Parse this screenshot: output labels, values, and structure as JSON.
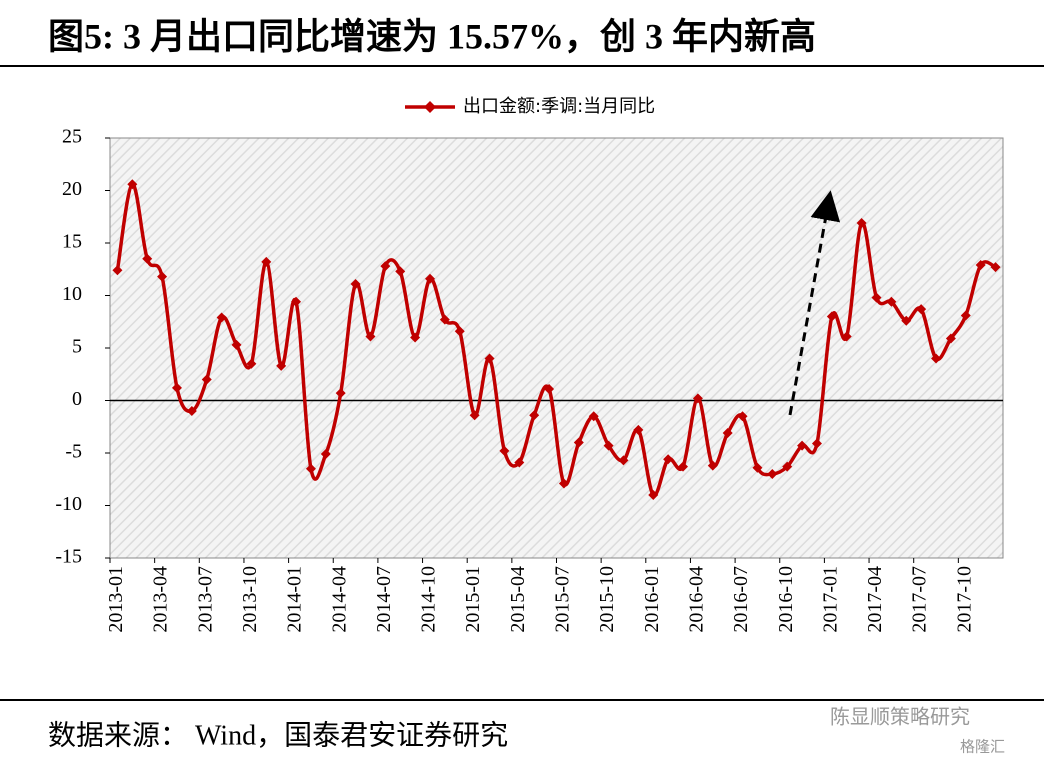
{
  "chart_data": {
    "type": "line",
    "title": "图5: 3 月出口同比增速为 15.57%，创 3 年内新高",
    "source": "数据来源： Wind，国泰君安证券研究",
    "categories": [
      "2013-01",
      null,
      null,
      "2013-04",
      null,
      null,
      "2013-07",
      null,
      null,
      "2013-10",
      null,
      null,
      "2014-01",
      null,
      null,
      "2014-04",
      null,
      null,
      "2014-07",
      null,
      null,
      "2014-10",
      null,
      null,
      "2015-01",
      null,
      null,
      "2015-04",
      null,
      null,
      "2015-07",
      null,
      null,
      "2015-10",
      null,
      null,
      "2016-01",
      null,
      null,
      "2016-04",
      null,
      null,
      "2016-07",
      null,
      null,
      "2016-10",
      null,
      null,
      "2017-01",
      null,
      null,
      "2017-04",
      null,
      null,
      "2017-07",
      null,
      null,
      "2017-10",
      null,
      null
    ],
    "series": [
      {
        "name": "出口金额:季调:当月同比",
        "color": "#c00000",
        "values": [
          12.4,
          20.6,
          13.5,
          11.8,
          1.2,
          -1.0,
          2.0,
          7.9,
          5.3,
          3.5,
          13.2,
          3.3,
          9.4,
          -6.5,
          -5.1,
          0.7,
          11.1,
          6.1,
          12.8,
          12.3,
          6.0,
          11.6,
          7.7,
          6.6,
          -1.4,
          4.0,
          -4.8,
          -5.9,
          -1.4,
          1.1,
          -7.9,
          -4.0,
          -1.5,
          -4.3,
          -5.7,
          -2.8,
          -9.0,
          -5.6,
          -6.3,
          0.2,
          -6.2,
          -3.1,
          -1.5,
          -6.4,
          -7.0,
          -6.3,
          -4.3,
          -4.1,
          8.0,
          6.1,
          16.9,
          9.8,
          9.4,
          7.6,
          8.7,
          4.0,
          5.9,
          8.1,
          12.9,
          12.7
        ]
      }
    ],
    "ylim": [
      -15,
      25
    ],
    "yticks": [
      -15,
      -10,
      -5,
      0,
      5,
      10,
      15,
      20,
      25
    ],
    "legend": "top"
  },
  "watermark": [
    "陈显顺策略研究",
    "格隆汇"
  ]
}
